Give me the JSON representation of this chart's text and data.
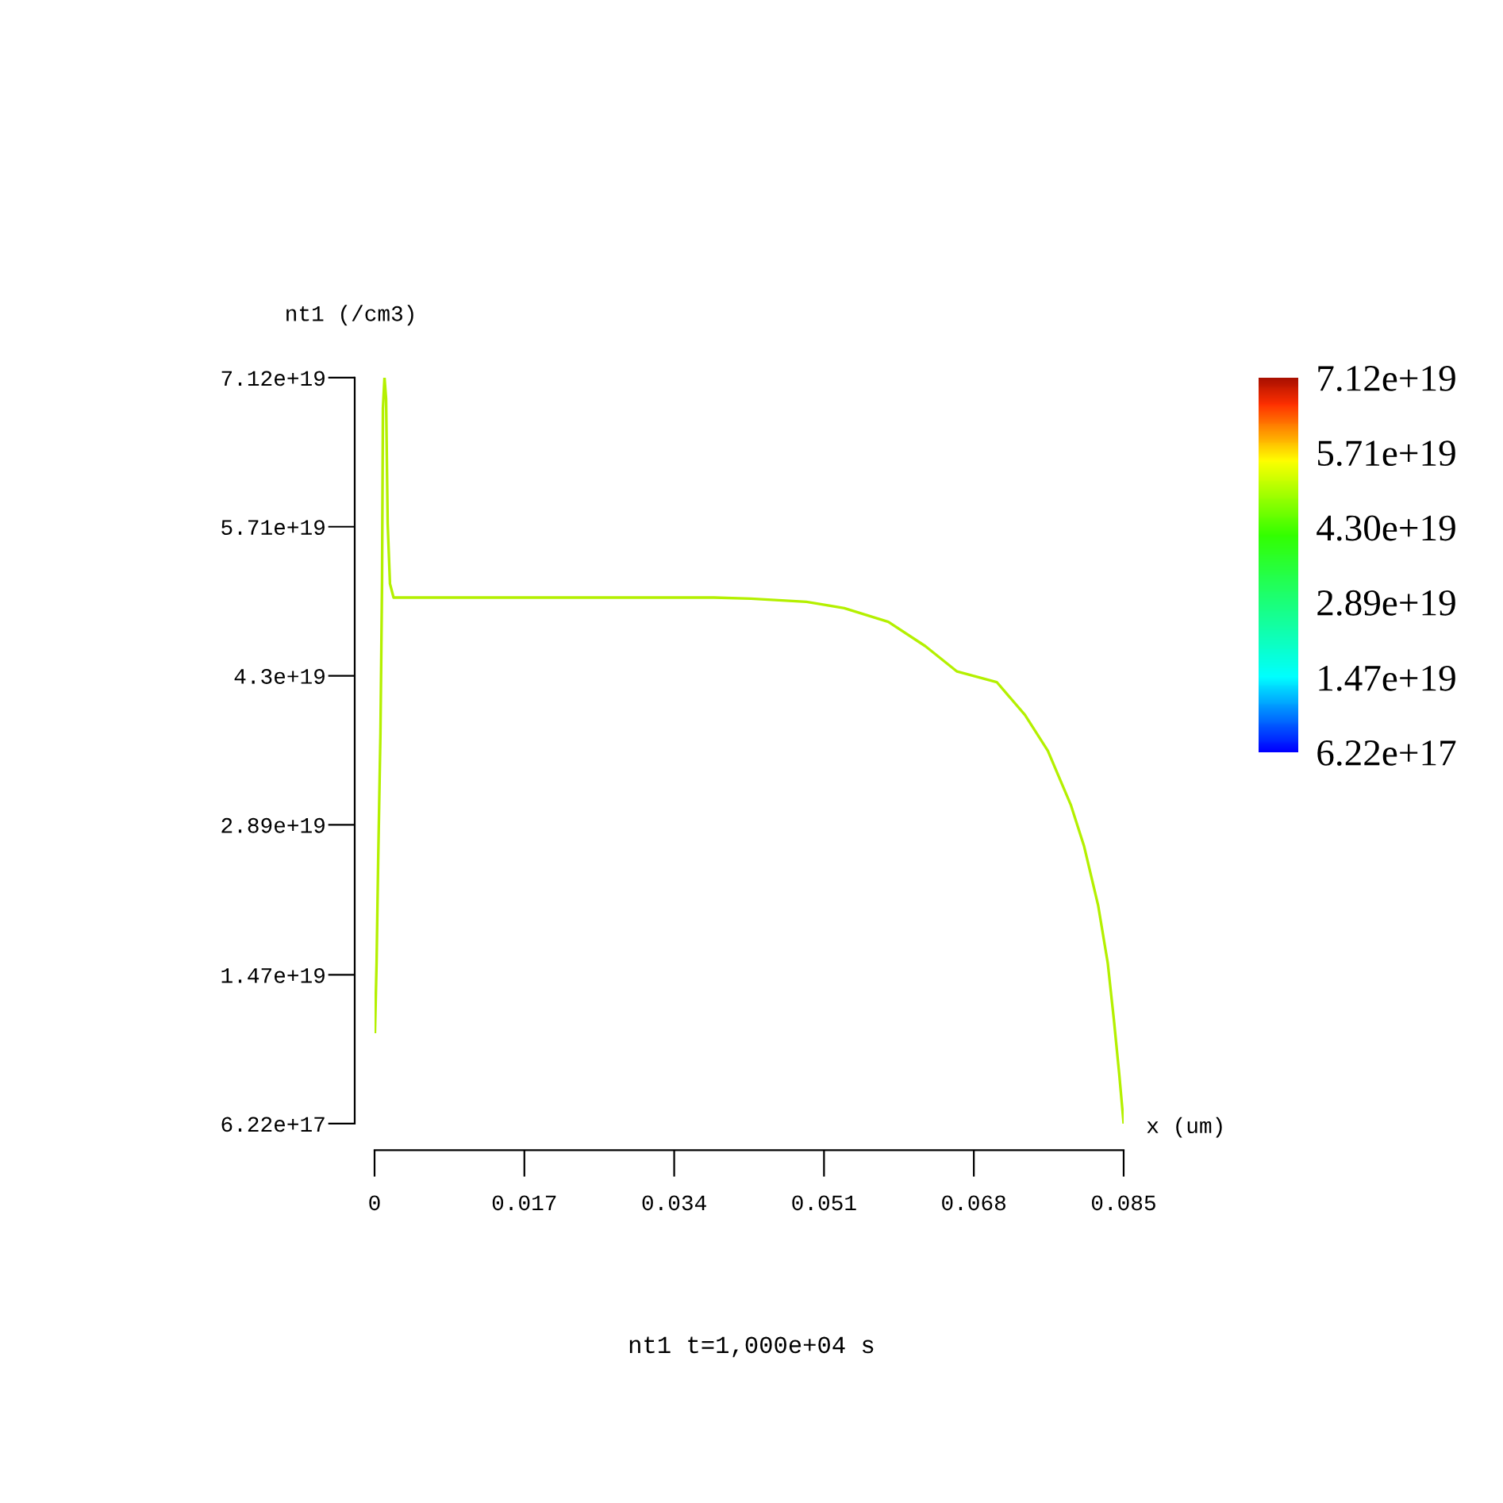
{
  "chart_data": {
    "type": "line",
    "title": "nt1 t=1,000e+04 s",
    "xlabel": "x (um)",
    "ylabel": "nt1 (/cm3)",
    "series": [
      {
        "color": "#b4f000",
        "x": [
          5e-05,
          0.00023,
          0.00041,
          0.00067,
          0.00085,
          0.00095,
          0.00113,
          0.00131,
          0.00149,
          0.00175,
          0.00216,
          0.0385,
          0.0427,
          0.049,
          0.0533,
          0.0583,
          0.0625,
          0.0661,
          0.0706,
          0.0738,
          0.0764,
          0.079,
          0.0805,
          0.0821,
          0.0832,
          0.0839,
          0.0845,
          0.085
        ],
        "values": [
          9.3e+18,
          1.58e+19,
          2.54e+19,
          3.76e+19,
          5.18e+19,
          6.83e+19,
          7.12e+19,
          6.92e+19,
          5.74e+19,
          5.17e+19,
          5.04e+19,
          5.04e+19,
          5.03e+19,
          5e+19,
          4.94e+19,
          4.81e+19,
          4.58e+19,
          4.34e+19,
          4.24e+19,
          3.93e+19,
          3.59e+19,
          3.08e+19,
          2.69e+19,
          2.13e+19,
          1.58e+19,
          1.04e+19,
          5.3e+18,
          6.22e+17
        ]
      }
    ],
    "xlim": [
      0,
      0.085
    ],
    "xticks": [
      0,
      0.017,
      0.034,
      0.051,
      0.068,
      0.085
    ],
    "ylim": [
      6.22e+17,
      7.12e+19
    ],
    "yticks": [
      {
        "value": 6.22e+17,
        "label": "6.22e+17"
      },
      {
        "value": 1.47e+19,
        "label": "1.47e+19"
      },
      {
        "value": 2.89e+19,
        "label": "2.89e+19"
      },
      {
        "value": 4.3e+19,
        "label": "4.3e+19"
      },
      {
        "value": 5.71e+19,
        "label": "5.71e+19"
      },
      {
        "value": 7.12e+19,
        "label": "7.12e+19"
      }
    ],
    "clim": [
      6.22e+17,
      7.12e+19
    ],
    "cticks": [
      {
        "value": 6.22e+17,
        "label": "6.22e+17"
      },
      {
        "value": 1.47e+19,
        "label": "1.47e+19"
      },
      {
        "value": 2.89e+19,
        "label": "2.89e+19"
      },
      {
        "value": 4.3e+19,
        "label": "4.30e+19"
      },
      {
        "value": 5.71e+19,
        "label": "5.71e+19"
      },
      {
        "value": 7.12e+19,
        "label": "7.12e+19"
      }
    ],
    "grid": false,
    "legend": false
  }
}
